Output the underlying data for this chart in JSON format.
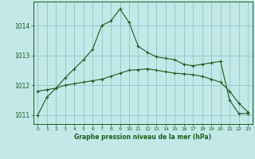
{
  "title": "Graphe pression niveau de la mer (hPa)",
  "bg_color": "#c2e8e8",
  "grid_color": "#8cc8c8",
  "line_color": "#1a5c1a",
  "xlim": [
    -0.5,
    23.5
  ],
  "ylim": [
    1010.7,
    1014.8
  ],
  "yticks": [
    1011,
    1012,
    1013,
    1014
  ],
  "xticks": [
    0,
    1,
    2,
    3,
    4,
    5,
    6,
    7,
    8,
    9,
    10,
    11,
    12,
    13,
    14,
    15,
    16,
    17,
    18,
    19,
    20,
    21,
    22,
    23
  ],
  "series1_x": [
    0,
    1,
    2,
    3,
    4,
    5,
    6,
    7,
    8,
    9,
    10,
    11,
    12,
    13,
    14,
    15,
    16,
    17,
    18,
    19,
    20,
    21,
    22,
    23
  ],
  "series1_y": [
    1011.0,
    1011.6,
    1011.9,
    1012.25,
    1012.55,
    1012.85,
    1013.2,
    1014.0,
    1014.15,
    1014.55,
    1014.1,
    1013.3,
    1013.1,
    1012.95,
    1012.9,
    1012.85,
    1012.7,
    1012.65,
    1012.7,
    1012.75,
    1012.8,
    1011.5,
    1011.05,
    1011.05
  ],
  "series2_x": [
    0,
    1,
    2,
    3,
    4,
    5,
    6,
    7,
    8,
    9,
    10,
    11,
    12,
    13,
    14,
    15,
    16,
    17,
    18,
    19,
    20,
    21,
    22,
    23
  ],
  "series2_y": [
    1011.8,
    1011.85,
    1011.9,
    1012.0,
    1012.05,
    1012.1,
    1012.15,
    1012.2,
    1012.3,
    1012.4,
    1012.5,
    1012.52,
    1012.55,
    1012.5,
    1012.45,
    1012.4,
    1012.38,
    1012.35,
    1012.3,
    1012.2,
    1012.1,
    1011.8,
    1011.4,
    1011.1
  ]
}
